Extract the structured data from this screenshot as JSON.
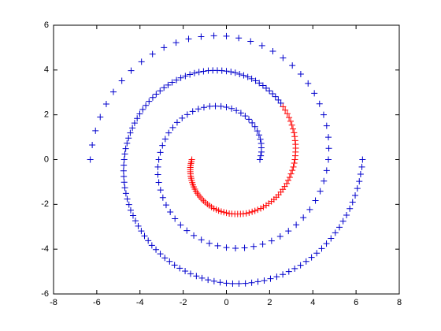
{
  "chart_data": {
    "type": "scatter",
    "marker": "+",
    "grid": false,
    "xlim": [
      -8,
      8
    ],
    "ylim": [
      -6,
      6
    ],
    "xticks": [
      -8,
      -6,
      -4,
      -2,
      0,
      2,
      4,
      6,
      8
    ],
    "yticks": [
      -6,
      -4,
      -2,
      0,
      2,
      4,
      6
    ],
    "series": [
      {
        "color": "#0000cc",
        "x": [
          6.3,
          6.27,
          6.21,
          6.15,
          6.06,
          5.96,
          5.84,
          5.71,
          5.56,
          5.4,
          5.23,
          5.04,
          4.84,
          4.63,
          4.41,
          4.18,
          3.94,
          3.69,
          3.43,
          3.16,
          2.89,
          2.61,
          2.33,
          2.04,
          1.75,
          1.46,
          1.17,
          0.88,
          0.58,
          0.29,
          0,
          -0.29,
          -0.57,
          -0.85,
          -1.13,
          -1.39,
          -1.66,
          -1.91,
          -2.16,
          -2.4,
          -2.63,
          -2.85,
          -3.06,
          -3.26,
          -3.45,
          -3.62,
          -3.79,
          -3.94,
          -4.08,
          -4.21,
          -4.32,
          -4.43,
          -4.51,
          -4.59,
          -4.65,
          -4.7,
          -4.73,
          -4.75,
          -4.76,
          -4.75,
          -4.73,
          -4.7,
          -4.66,
          -4.6,
          -4.53,
          -4.45,
          -4.35,
          -4.25,
          -4.13,
          -4.01,
          -3.87,
          -3.73,
          -3.58,
          -3.41,
          -3.25,
          -3.07,
          -2.89,
          -2.7,
          -2.51,
          -2.31,
          -2.11,
          -1.9,
          -1.69,
          -1.48,
          -1.27,
          -1.06,
          -0.84,
          -0.63,
          -0.42,
          -0.21,
          0,
          0.21,
          0.41,
          0.61,
          0.8,
          0.99,
          1.17,
          1.35,
          1.52,
          1.69,
          1.84,
          1.99,
          2.14,
          2.27,
          2.4,
          2.52
        ],
        "y": [
          0,
          -0.33,
          -0.65,
          -0.97,
          -1.29,
          -1.6,
          -1.9,
          -2.19,
          -2.48,
          -2.75,
          -3.02,
          -3.27,
          -3.52,
          -3.75,
          -3.97,
          -4.18,
          -4.37,
          -4.55,
          -4.72,
          -4.87,
          -5,
          -5.13,
          -5.23,
          -5.32,
          -5.4,
          -5.45,
          -5.5,
          -5.53,
          -5.54,
          -5.54,
          -5.52,
          -5.48,
          -5.43,
          -5.37,
          -5.29,
          -5.2,
          -5.1,
          -4.98,
          -4.85,
          -4.71,
          -4.55,
          -4.39,
          -4.21,
          -4.02,
          -3.83,
          -3.62,
          -3.41,
          -3.19,
          -2.97,
          -2.73,
          -2.5,
          -2.26,
          -2.01,
          -1.76,
          -1.51,
          -1.26,
          -1.01,
          -0.75,
          -0.5,
          -0.25,
          0,
          0.25,
          0.49,
          0.73,
          0.96,
          1.19,
          1.41,
          1.63,
          1.84,
          2.04,
          2.24,
          2.42,
          2.6,
          2.77,
          2.92,
          3.07,
          3.21,
          3.33,
          3.45,
          3.55,
          3.65,
          3.73,
          3.8,
          3.86,
          3.91,
          3.94,
          3.97,
          3.98,
          3.98,
          3.97,
          3.95,
          3.92,
          3.88,
          3.82,
          3.76,
          3.69,
          3.61,
          3.52,
          3.42,
          3.31,
          3.19,
          3.07,
          2.94,
          2.81,
          2.66,
          2.52
        ]
      },
      {
        "color": "#ff0000",
        "x": [
          2.62,
          2.72,
          2.82,
          2.9,
          2.97,
          3.03,
          3.08,
          3.13,
          3.16,
          3.18,
          3.2,
          3.21,
          3.2,
          3.19,
          3.17,
          3.14,
          3.1,
          3.05,
          2.99,
          2.93,
          2.86,
          2.79,
          2.7,
          2.61,
          2.52,
          2.41,
          2.31,
          2.2,
          2.08,
          1.96,
          1.84,
          1.71,
          1.59,
          1.45,
          1.32,
          1.19,
          1.05,
          0.92,
          0.78,
          0.65,
          0.52,
          0.39,
          0.25,
          0.13,
          0,
          -0.12,
          -0.24,
          -0.36,
          -0.47,
          -0.58,
          -0.69,
          -0.79,
          -0.88,
          -0.98,
          -1.06,
          -1.14,
          -1.22,
          -1.29,
          -1.35,
          -1.41,
          -1.46,
          -1.51,
          -1.55,
          -1.58,
          -1.61,
          -1.63,
          -1.65,
          -1.66,
          -1.67,
          -1.67,
          -1.67,
          -1.66,
          -1.64,
          -1.62,
          -1.6
        ],
        "y": [
          2.36,
          2.21,
          2.05,
          1.88,
          1.71,
          1.54,
          1.37,
          1.2,
          1.03,
          0.85,
          0.68,
          0.51,
          0.34,
          0.17,
          0,
          -0.16,
          -0.33,
          -0.48,
          -0.64,
          -0.79,
          -0.93,
          -1.07,
          -1.2,
          -1.33,
          -1.45,
          -1.57,
          -1.68,
          -1.78,
          -1.87,
          -1.96,
          -2.04,
          -2.12,
          -2.18,
          -2.24,
          -2.29,
          -2.33,
          -2.37,
          -2.4,
          -2.42,
          -2.43,
          -2.43,
          -2.43,
          -2.42,
          -2.41,
          -2.38,
          -2.35,
          -2.32,
          -2.28,
          -2.23,
          -2.18,
          -2.12,
          -2.05,
          -1.99,
          -1.91,
          -1.84,
          -1.76,
          -1.67,
          -1.59,
          -1.5,
          -1.41,
          -1.32,
          -1.22,
          -1.13,
          -1.03,
          -0.93,
          -0.83,
          -0.74,
          -0.64,
          -0.54,
          -0.45,
          -0.35,
          -0.26,
          -0.17,
          -0.09,
          0
        ]
      },
      {
        "color": "#0000cc",
        "x": [
          -6.3,
          -6.21,
          -6.06,
          -5.84,
          -5.56,
          -5.23,
          -4.84,
          -4.41,
          -3.93,
          -3.42,
          -2.89,
          -2.33,
          -1.75,
          -1.17,
          -0.58,
          0,
          0.57,
          1.12,
          1.65,
          2.15,
          2.62,
          3.05,
          3.44,
          3.78,
          4.07,
          4.31,
          4.5,
          4.64,
          4.72,
          4.74,
          4.72,
          4.64,
          4.51,
          4.34,
          4.12,
          3.86,
          3.56,
          3.23,
          2.87,
          2.49,
          2.09,
          1.68,
          1.26,
          0.84,
          0.42,
          0,
          -0.4,
          -0.79,
          -1.16,
          -1.51,
          -1.83,
          -2.12,
          -2.38,
          -2.6,
          -2.79,
          -2.94,
          -3.05,
          -3.13,
          -3.17,
          -3.17,
          -3.13,
          -3.06,
          -2.96,
          -2.83,
          -2.67,
          -2.48,
          -2.28,
          -2.05,
          -1.81,
          -1.56,
          -1.3,
          -1.04,
          -0.77,
          -0.51,
          -0.25,
          0,
          0.24,
          0.46,
          0.67,
          0.87,
          1.04,
          1.19,
          1.32,
          1.43,
          1.51,
          1.57,
          1.61,
          1.62,
          1.62,
          1.59,
          1.55
        ],
        "y": [
          0,
          0.65,
          1.29,
          1.9,
          2.48,
          3.02,
          3.52,
          3.97,
          4.37,
          4.71,
          5,
          5.22,
          5.39,
          5.49,
          5.53,
          5.51,
          5.43,
          5.28,
          5.09,
          4.84,
          4.54,
          4.2,
          3.82,
          3.4,
          2.96,
          2.49,
          2,
          1.51,
          1,
          0.5,
          0,
          -0.49,
          -0.96,
          -1.41,
          -1.83,
          -2.23,
          -2.59,
          -2.91,
          -3.19,
          -3.43,
          -3.63,
          -3.78,
          -3.88,
          -3.94,
          -3.96,
          -3.93,
          -3.85,
          -3.74,
          -3.58,
          -3.39,
          -3.17,
          -2.92,
          -2.64,
          -2.34,
          -2.03,
          -1.7,
          -1.36,
          -1.02,
          -0.67,
          -0.33,
          0,
          0.32,
          0.63,
          0.92,
          1.19,
          1.43,
          1.66,
          1.85,
          2.01,
          2.15,
          2.26,
          2.33,
          2.38,
          2.39,
          2.38,
          2.34,
          2.28,
          2.19,
          2.08,
          1.95,
          1.8,
          1.64,
          1.47,
          1.28,
          1.1,
          0.91,
          0.72,
          0.53,
          0.34,
          0.17,
          0
        ]
      }
    ]
  }
}
